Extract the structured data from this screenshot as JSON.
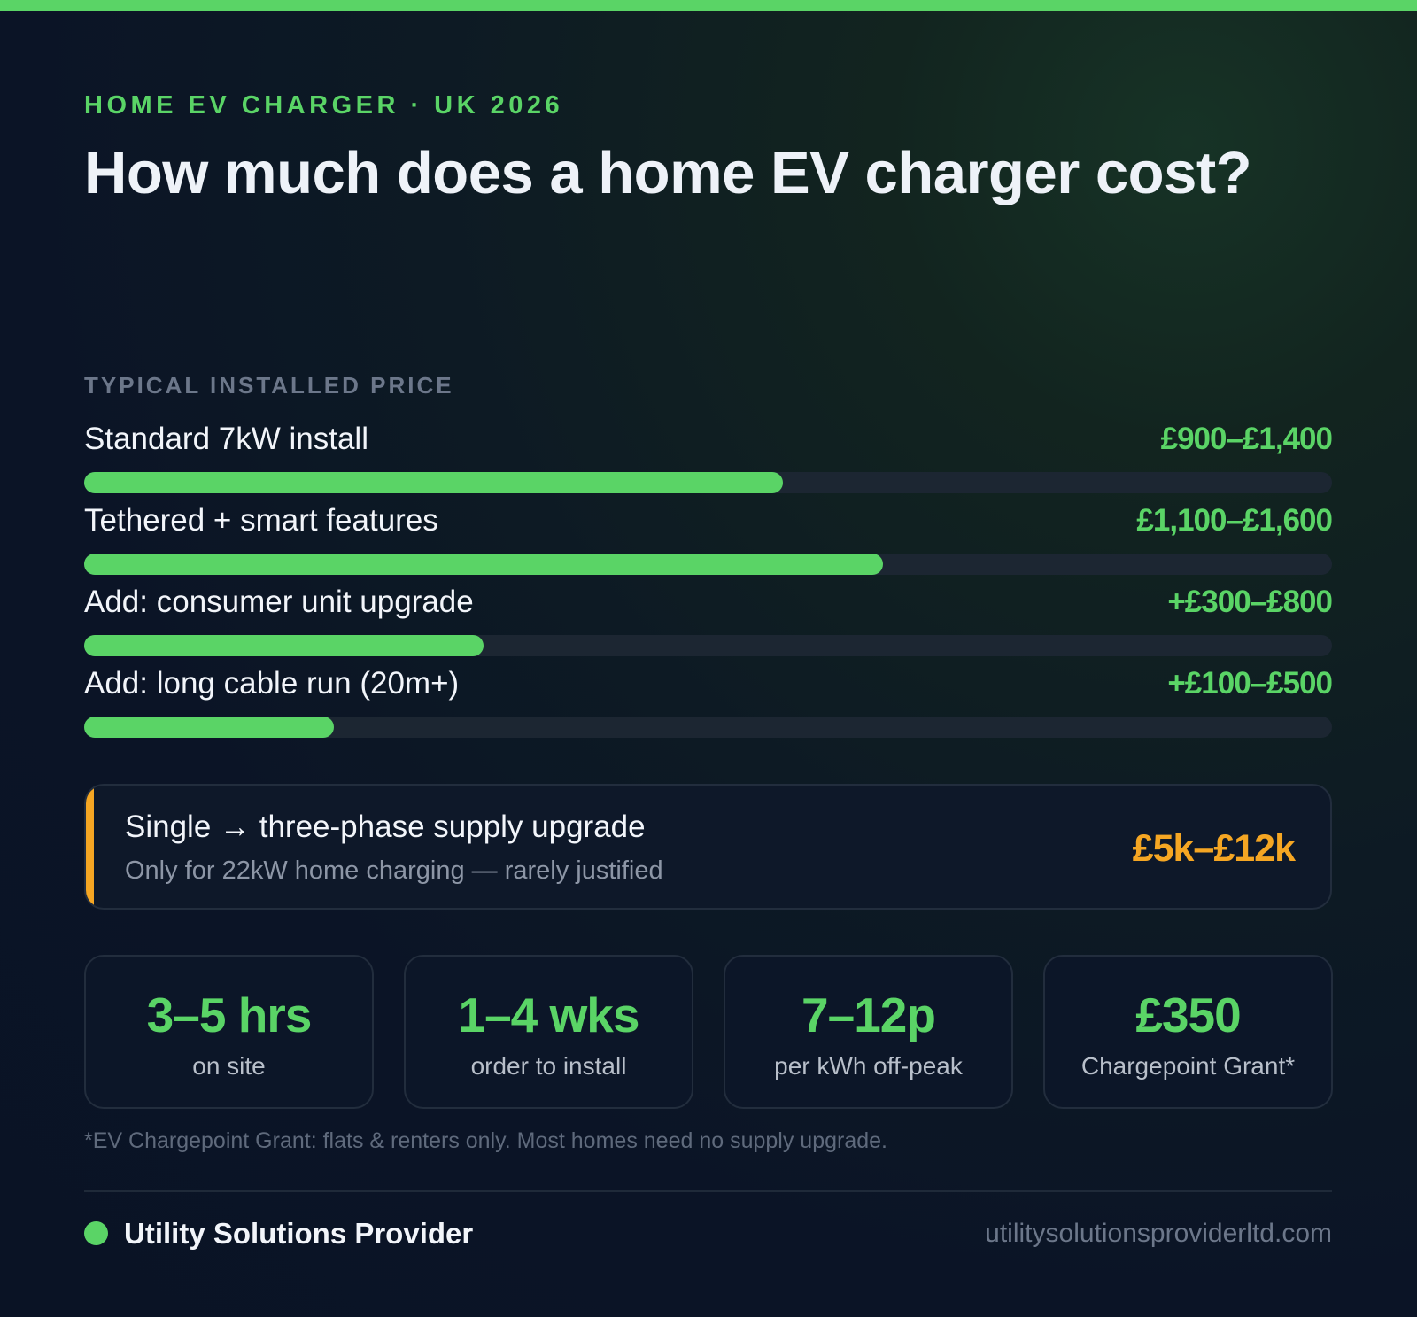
{
  "header": {
    "eyebrow": "HOME EV CHARGER · UK 2026",
    "title": "How much does a home EV charger cost?"
  },
  "price_bars": {
    "heading": "TYPICAL INSTALLED PRICE",
    "xlim": [
      0,
      2500
    ],
    "color": "#5ad466",
    "rows": [
      {
        "label": "Standard 7kW install",
        "price": "£900–£1,400",
        "value": 1400
      },
      {
        "label": "Tethered + smart features",
        "price": "£1,100–£1,600",
        "value": 1600
      },
      {
        "label": "Add: consumer unit upgrade",
        "price": "+£300–£800",
        "value": 800
      },
      {
        "label": "Add: long cable run (20m+)",
        "price": "+£100–£500",
        "value": 500
      }
    ]
  },
  "callout": {
    "title": "Single → three-phase supply upgrade",
    "subtitle": "Only for 22kW home charging — rarely justified",
    "price": "£5k–£12k"
  },
  "stats": [
    {
      "value": "3–5 hrs",
      "label": "on site"
    },
    {
      "value": "1–4 wks",
      "label": "order to install"
    },
    {
      "value": "7–12p",
      "label": "per kWh off-peak"
    },
    {
      "value": "£350",
      "label": "Chargepoint Grant*"
    }
  ],
  "footnote": "*EV Chargepoint Grant: flats & renters only. Most homes need no supply upgrade.",
  "footer": {
    "brand": "Utility Solutions Provider",
    "url": "utilitysolutionsproviderltd.com"
  }
}
